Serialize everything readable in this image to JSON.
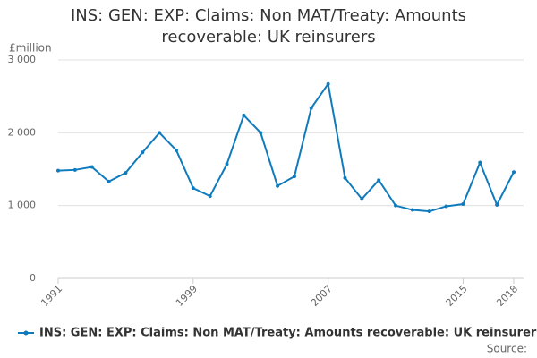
{
  "chart_data": {
    "type": "line",
    "title": "INS: GEN: EXP: Claims: Non MAT/Treaty: Amounts recoverable: UK reinsurers",
    "y_label": "£million",
    "source": "Source:",
    "x": [
      1991,
      1992,
      1993,
      1994,
      1995,
      1996,
      1997,
      1998,
      1999,
      2000,
      2001,
      2002,
      2003,
      2004,
      2005,
      2006,
      2007,
      2008,
      2009,
      2010,
      2011,
      2012,
      2013,
      2014,
      2015,
      2016,
      2017,
      2018
    ],
    "series": [
      {
        "name": "INS: GEN: EXP: Claims: Non MAT/Treaty: Amounts recoverable: UK reinsurers",
        "color": "#0f7bbd",
        "values": [
          1480,
          1490,
          1530,
          1330,
          1450,
          1730,
          2000,
          1760,
          1240,
          1130,
          1570,
          2240,
          2000,
          1270,
          1400,
          2340,
          2670,
          1380,
          1090,
          1350,
          1000,
          940,
          920,
          990,
          1020,
          1590,
          1010,
          1460
        ]
      }
    ],
    "xlim": [
      1991,
      2018
    ],
    "xticks": [
      1991,
      1999,
      2007,
      2015,
      2018
    ],
    "ylim": [
      0,
      3000
    ],
    "yticks": [
      0,
      {
        "value": 1000,
        "label": "1 000"
      },
      {
        "value": 2000,
        "label": "2 000"
      },
      {
        "value": 3000,
        "label": "3 000"
      }
    ],
    "grid": true
  }
}
